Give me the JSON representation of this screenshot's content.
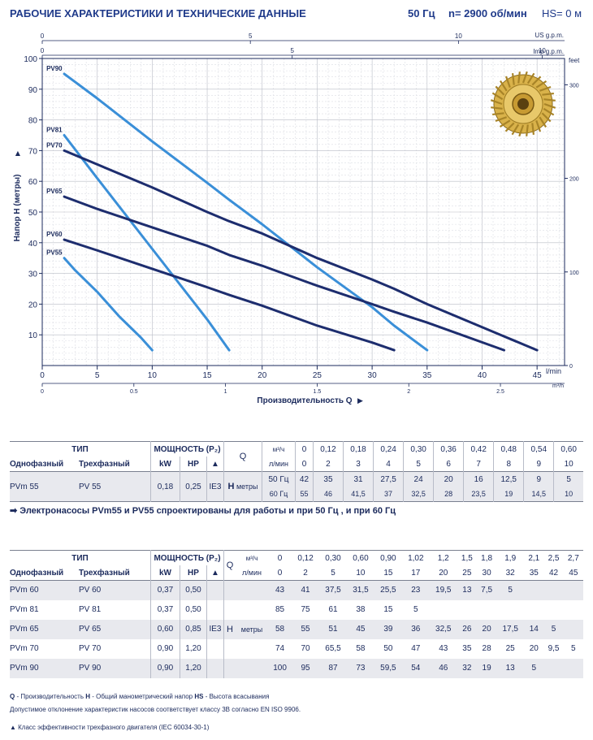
{
  "header": {
    "title": "РАБОЧИЕ ХАРАКТЕРИСТИКИ И ТЕХНИЧЕСКИЕ ДАННЫЕ",
    "freq": "50 Гц",
    "rpm": "n= 2900 об/мин",
    "hs": "HS= 0 м"
  },
  "chart_data": {
    "type": "line",
    "ylabel": "Напор H (метры)",
    "xlabel": "Производительность Q",
    "x_unit": "l/min",
    "x2_unit": "m³/h",
    "top_unit_1": "US g.p.m.",
    "top_unit_2": "Imp g.p.m.",
    "right_unit": "feet",
    "xlim": [
      0,
      47.5
    ],
    "ylim": [
      0,
      100
    ],
    "x_ticks": [
      "0",
      "5",
      "10",
      "15",
      "20",
      "25",
      "30",
      "35",
      "40",
      "45"
    ],
    "y_ticks": [
      "10",
      "20",
      "30",
      "40",
      "50",
      "60",
      "70",
      "80",
      "90",
      "100"
    ],
    "m3h_ticks": [
      "0",
      "0.5",
      "1",
      "1.5",
      "2",
      "2.5"
    ],
    "usgpm_ticks": [
      "0",
      "5",
      "10"
    ],
    "impgpm_ticks": [
      "0",
      "5",
      "10"
    ],
    "feet_ticks": [
      "0",
      "100",
      "200",
      "300"
    ],
    "series": [
      {
        "name": "PV90",
        "color": "#3a8fd8",
        "x": [
          2,
          5,
          10,
          15,
          17,
          20,
          25,
          30,
          32,
          35
        ],
        "y": [
          95,
          87,
          73,
          59.5,
          54,
          46,
          32,
          19,
          13,
          5
        ]
      },
      {
        "name": "PV81",
        "color": "#3a8fd8",
        "x": [
          2,
          5,
          10,
          15,
          17
        ],
        "y": [
          75,
          61,
          38,
          15,
          5
        ]
      },
      {
        "name": "PV70",
        "color": "#1d2d6e",
        "x": [
          2,
          5,
          10,
          15,
          17,
          20,
          25,
          30,
          32,
          35,
          42,
          45
        ],
        "y": [
          70,
          65.5,
          58,
          50,
          47,
          43,
          35,
          28,
          25,
          20,
          9.5,
          5
        ]
      },
      {
        "name": "PV65",
        "color": "#1d2d6e",
        "x": [
          2,
          5,
          10,
          15,
          17,
          20,
          25,
          30,
          32,
          35,
          42
        ],
        "y": [
          55,
          51,
          45,
          39,
          36,
          32.5,
          26,
          20,
          17.5,
          14,
          5
        ]
      },
      {
        "name": "PV60",
        "color": "#1d2d6e",
        "x": [
          2,
          5,
          10,
          15,
          17,
          20,
          25,
          30,
          32
        ],
        "y": [
          41,
          37.5,
          31.5,
          25.5,
          23,
          19.5,
          13,
          7.5,
          5
        ]
      },
      {
        "name": "PV55",
        "color": "#3a8fd8",
        "x": [
          2,
          3,
          4,
          5,
          6,
          7,
          8,
          9,
          10
        ],
        "y": [
          35,
          31,
          27.5,
          24,
          20,
          16,
          12.5,
          9,
          5
        ]
      }
    ]
  },
  "table1": {
    "col_type": "ТИП",
    "col_power": "МОЩНОСТЬ (P₂)",
    "col_q": "Q",
    "col_single": "Однофазный",
    "col_three": "Трехфазный",
    "col_kw": "kW",
    "col_hp": "HP",
    "col_tri": "▲",
    "unit_m3h": "м³/ч",
    "unit_lmin": "л/мин",
    "q_m3h": [
      "0",
      "0,12",
      "0,18",
      "0,24",
      "0,30",
      "0,36",
      "0,42",
      "0,48",
      "0,54",
      "0,60"
    ],
    "q_lmin": [
      "0",
      "2",
      "3",
      "4",
      "5",
      "6",
      "7",
      "8",
      "9",
      "10"
    ],
    "row": {
      "single": "PVm 55",
      "three": "PV 55",
      "kw": "0,18",
      "hp": "0,25",
      "ie": "IE3",
      "h": "H",
      "h_unit": "метры",
      "f50": "50 Гц",
      "f60": "60 Гц",
      "h50": [
        "42",
        "35",
        "31",
        "27,5",
        "24",
        "20",
        "16",
        "12,5",
        "9",
        "5"
      ],
      "h60": [
        "55",
        "46",
        "41,5",
        "37",
        "32,5",
        "28",
        "23,5",
        "19",
        "14,5",
        "10"
      ]
    }
  },
  "note": "➡ Электронасосы PVm55 и PV55 спроектированы для работы и при 50 Гц , и при 60 Гц",
  "table2": {
    "col_type": "ТИП",
    "col_power": "МОЩНОСТЬ (P₂)",
    "col_q": "Q",
    "col_single": "Однофазный",
    "col_three": "Трехфазный",
    "col_kw": "kW",
    "col_hp": "HP",
    "col_tri": "▲",
    "unit_m3h": "м³/ч",
    "unit_lmin": "л/мин",
    "q_m3h": [
      "0",
      "0,12",
      "0,30",
      "0,60",
      "0,90",
      "1,02",
      "1,2",
      "1,5",
      "1,8",
      "1,9",
      "2,1",
      "2,5",
      "2,7"
    ],
    "q_lmin": [
      "0",
      "2",
      "5",
      "10",
      "15",
      "17",
      "20",
      "25",
      "30",
      "32",
      "35",
      "42",
      "45"
    ],
    "ie": "IE3",
    "h": "H",
    "h_unit": "метры",
    "rows": [
      {
        "single": "PVm 60",
        "three": "PV 60",
        "kw": "0,37",
        "hp": "0,50",
        "h": [
          "43",
          "41",
          "37,5",
          "31,5",
          "25,5",
          "23",
          "19,5",
          "13",
          "7,5",
          "5",
          "",
          "",
          ""
        ]
      },
      {
        "single": "PVm 81",
        "three": "PV 81",
        "kw": "0,37",
        "hp": "0,50",
        "h": [
          "85",
          "75",
          "61",
          "38",
          "15",
          "5",
          "",
          "",
          "",
          "",
          "",
          "",
          ""
        ]
      },
      {
        "single": "PVm 65",
        "three": "PV 65",
        "kw": "0,60",
        "hp": "0,85",
        "h": [
          "58",
          "55",
          "51",
          "45",
          "39",
          "36",
          "32,5",
          "26",
          "20",
          "17,5",
          "14",
          "5",
          ""
        ]
      },
      {
        "single": "PVm 70",
        "three": "PV 70",
        "kw": "0,90",
        "hp": "1,20",
        "h": [
          "74",
          "70",
          "65,5",
          "58",
          "50",
          "47",
          "43",
          "35",
          "28",
          "25",
          "20",
          "9,5",
          "5"
        ]
      },
      {
        "single": "PVm 90",
        "three": "PV 90",
        "kw": "0,90",
        "hp": "1,20",
        "h": [
          "100",
          "95",
          "87",
          "73",
          "59,5",
          "54",
          "46",
          "32",
          "19",
          "13",
          "5",
          "",
          ""
        ]
      }
    ]
  },
  "footnotes": {
    "line1_q": "Q",
    "line1_q_text": " - Производительность ",
    "line1_h": "H",
    "line1_h_text": " - Общий манометрический напор ",
    "line1_hs": "HS",
    "line1_hs_text": " - Высота всасывания",
    "line2": "Допустимое отклонение характеристик насосов соответствует классу 3B согласно EN ISO 9906.",
    "line3": "▲  Класс эффективности трехфазного двигателя (IEC 60034-30-1)"
  }
}
